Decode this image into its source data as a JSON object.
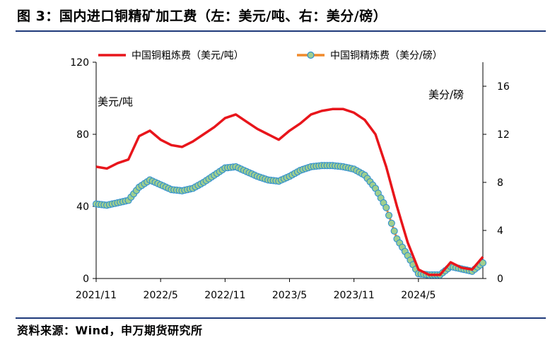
{
  "header": {
    "title": "图 3：国内进口铜精矿加工费（左：美元/吨、右：美分/磅）"
  },
  "footer": {
    "source": "资料来源：Wind，申万期货研究所"
  },
  "colors": {
    "tc_line": "#e8151b",
    "rc_line": "#f08a2c",
    "rc_marker_fill": "#9fcf8f",
    "rc_marker_stroke": "#2f8fd0",
    "rule": "#1f3a7a"
  },
  "chart_data": {
    "type": "line",
    "title": "国内进口铜精矿加工费",
    "x_tick_labels": [
      "2021/11",
      "2022/5",
      "2022/11",
      "2023/5",
      "2023/11",
      "2024/5"
    ],
    "left_axis": {
      "unit_label": "美元/吨",
      "range": [
        0,
        120
      ],
      "ticks": [
        0,
        40,
        80,
        120
      ]
    },
    "right_axis": {
      "unit_label": "美分/磅",
      "range": [
        0,
        18
      ],
      "ticks": [
        0,
        4,
        8,
        12,
        16
      ]
    },
    "series": [
      {
        "name": "中国铜粗炼费（美元/吨）",
        "axis": "left",
        "style": "line",
        "x": [
          0,
          1,
          2,
          3,
          4,
          5,
          6,
          7,
          8,
          9,
          10,
          11,
          12,
          13,
          14,
          15,
          16,
          17,
          18,
          19,
          20,
          21,
          22,
          23,
          24,
          25,
          26,
          27,
          28,
          29,
          30,
          31,
          32,
          33,
          34,
          35,
          36
        ],
        "values": [
          62,
          61,
          64,
          66,
          79,
          82,
          77,
          74,
          73,
          76,
          80,
          84,
          89,
          91,
          87,
          83,
          80,
          77,
          82,
          86,
          91,
          93,
          94,
          94,
          92,
          88,
          80,
          62,
          40,
          20,
          5,
          2,
          2,
          9,
          6,
          5,
          12
        ]
      },
      {
        "name": "中国铜精炼费（美分/磅）",
        "axis": "right",
        "style": "line+marker",
        "x": [
          0,
          1,
          2,
          3,
          4,
          5,
          6,
          7,
          8,
          9,
          10,
          11,
          12,
          13,
          14,
          15,
          16,
          17,
          18,
          19,
          20,
          21,
          22,
          23,
          24,
          25,
          26,
          27,
          28,
          29,
          30,
          31,
          32,
          33,
          34,
          35,
          36
        ],
        "values": [
          6.2,
          6.1,
          6.3,
          6.5,
          7.6,
          8.2,
          7.8,
          7.4,
          7.3,
          7.5,
          8.0,
          8.6,
          9.2,
          9.3,
          8.9,
          8.5,
          8.2,
          8.1,
          8.5,
          9.0,
          9.3,
          9.4,
          9.4,
          9.3,
          9.1,
          8.6,
          7.5,
          5.9,
          3.3,
          1.9,
          0.4,
          0.3,
          0.3,
          1.0,
          0.8,
          0.6,
          1.3
        ]
      }
    ],
    "legend": {
      "position": "top"
    }
  }
}
